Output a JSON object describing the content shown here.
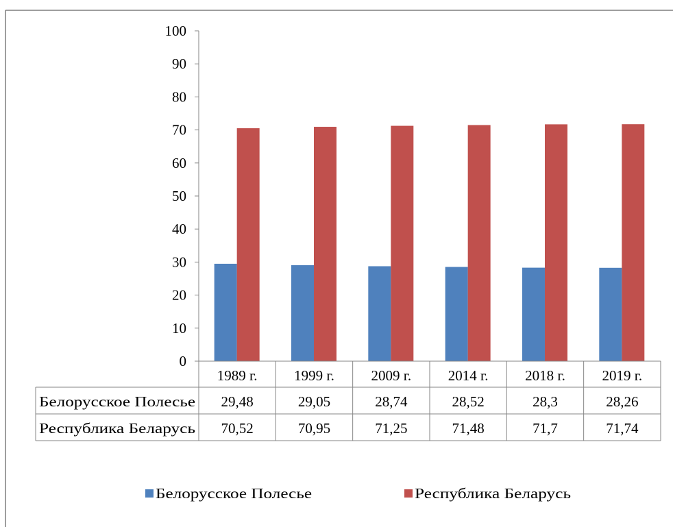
{
  "chart_data": {
    "type": "bar",
    "categories": [
      "1989 г.",
      "1999 г.",
      "2009 г.",
      "2014 г.",
      "2018 г.",
      "2019 г."
    ],
    "series": [
      {
        "name": "Белорусское Полесье",
        "values": [
          29.48,
          29.05,
          28.74,
          28.52,
          28.3,
          28.26
        ],
        "value_labels": [
          "29,48",
          "29,05",
          "28,74",
          "28,52",
          "28,3",
          "28,26"
        ],
        "color": "#4f81bd"
      },
      {
        "name": "Республика Беларусь",
        "values": [
          70.52,
          70.95,
          71.25,
          71.48,
          71.7,
          71.74
        ],
        "value_labels": [
          "70,52",
          "70,95",
          "71,25",
          "71,48",
          "71,7",
          "71,74"
        ],
        "color": "#c0504d"
      }
    ],
    "ylim": [
      0,
      100
    ],
    "yticks": [
      "0",
      "10",
      "20",
      "30",
      "40",
      "50",
      "60",
      "70",
      "80",
      "90",
      "100"
    ],
    "grid": false,
    "data_table": true,
    "legend_position": "bottom"
  }
}
